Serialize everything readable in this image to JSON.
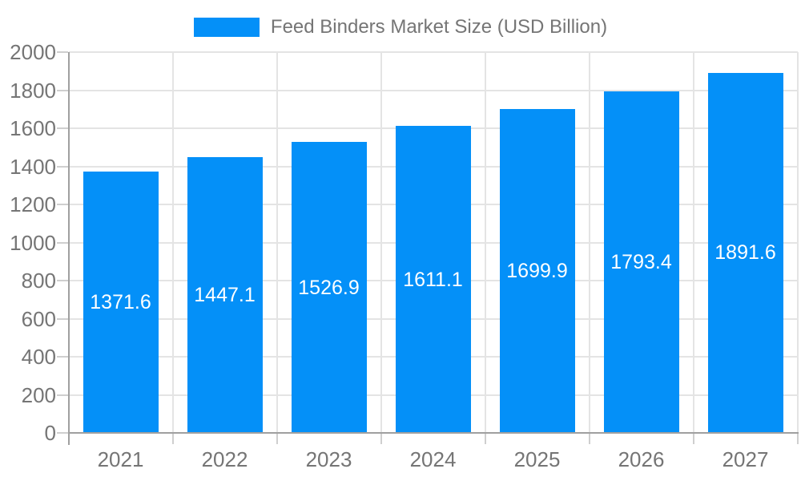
{
  "legend": {
    "label": "Feed Binders Market Size (USD Billion)"
  },
  "chart_data": {
    "type": "bar",
    "title": "Feed Binders Market Size (USD Billion)",
    "categories": [
      "2021",
      "2022",
      "2023",
      "2024",
      "2025",
      "2026",
      "2027"
    ],
    "values": [
      1371.6,
      1447.1,
      1526.9,
      1611.1,
      1699.9,
      1793.4,
      1891.6
    ],
    "value_labels": [
      "1371.6",
      "1447.1",
      "1526.9",
      "1611.1",
      "1699.9",
      "1793.4",
      "1891.6"
    ],
    "series": [
      {
        "name": "Feed Binders Market Size (USD Billion)",
        "values": [
          1371.6,
          1447.1,
          1526.9,
          1611.1,
          1699.9,
          1793.4,
          1891.6
        ]
      }
    ],
    "xlabel": "",
    "ylabel": "",
    "ylim": [
      0,
      2000
    ],
    "ytick_step": 200,
    "ytick_labels": [
      "0",
      "200",
      "400",
      "600",
      "800",
      "1000",
      "1200",
      "1400",
      "1600",
      "1800",
      "2000"
    ],
    "grid": true,
    "legend_position": "top",
    "colors": {
      "bar": "#0490F8",
      "grid": "#e4e4e4",
      "axis": "#a0a0a0",
      "tick": "#cfcfcf",
      "text": "#757575",
      "value_label": "#ffffff",
      "background": "#ffffff"
    }
  }
}
